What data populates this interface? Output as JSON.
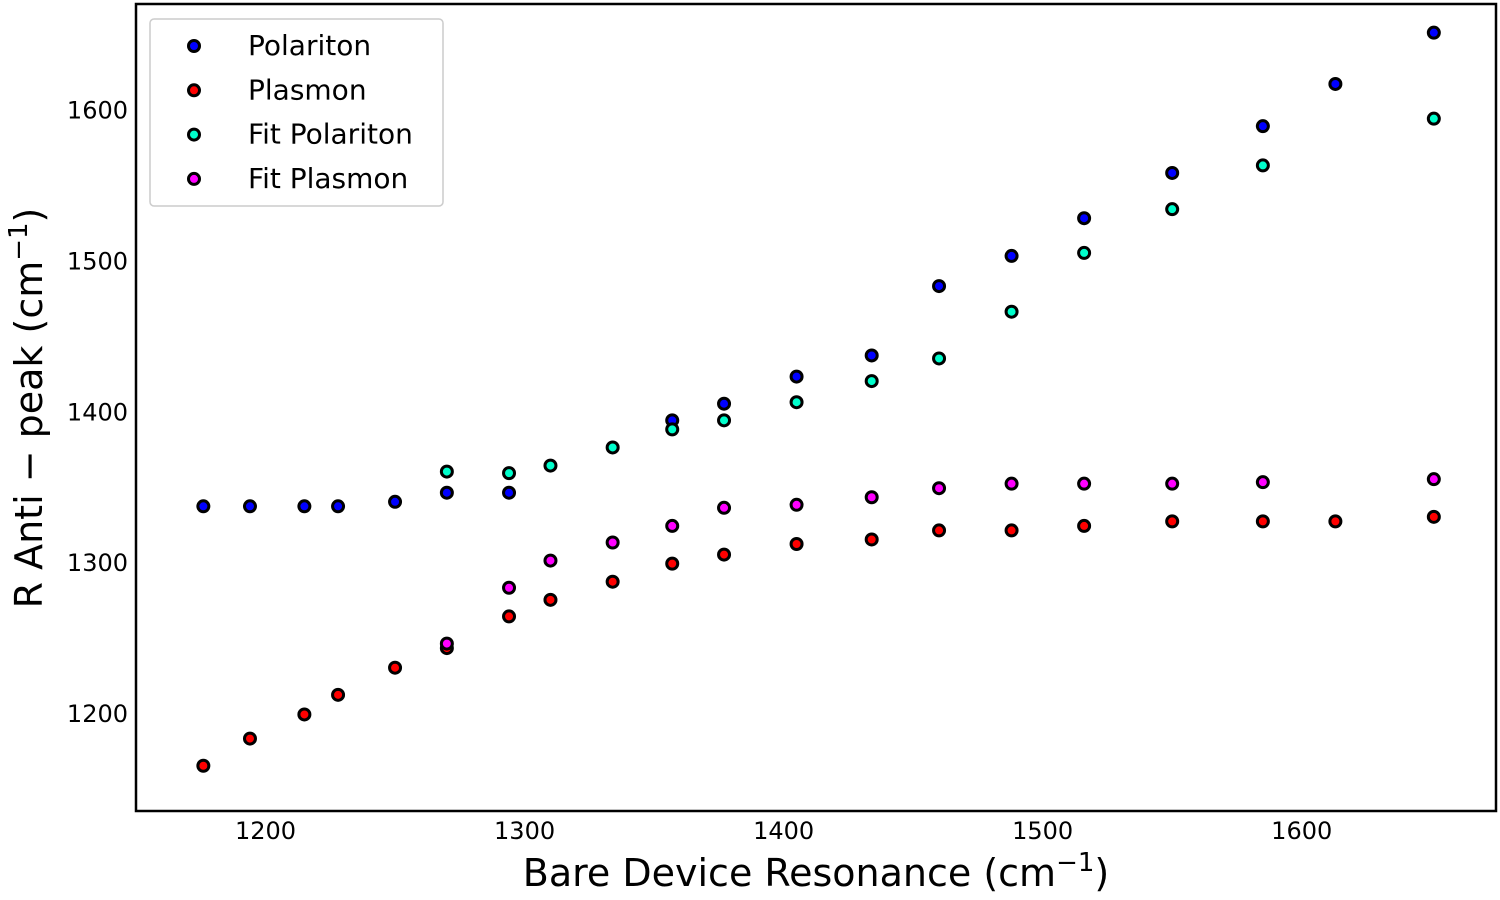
{
  "chart_data": {
    "type": "scatter",
    "xlabel": "Bare Device Resonance (cm",
    "ylabel": "R Anti − peak (cm",
    "label_unit_sup": "−1",
    "label_close": ")",
    "xlim": [
      1150,
      1675
    ],
    "ylim": [
      1135,
      1670
    ],
    "xticks": [
      1200,
      1300,
      1400,
      1500,
      1600
    ],
    "yticks": [
      1200,
      1300,
      1400,
      1500,
      1600
    ],
    "grid": false,
    "legend_position": "top-left",
    "series": [
      {
        "name": "Polariton",
        "color": "#0000ff",
        "points": [
          [
            1176,
            1337
          ],
          [
            1194,
            1337
          ],
          [
            1215,
            1337
          ],
          [
            1228,
            1337
          ],
          [
            1250,
            1340
          ],
          [
            1270,
            1346
          ],
          [
            1294,
            1346
          ],
          [
            1357,
            1394
          ],
          [
            1377,
            1405
          ],
          [
            1405,
            1423
          ],
          [
            1434,
            1437
          ],
          [
            1460,
            1483
          ],
          [
            1488,
            1503
          ],
          [
            1516,
            1528
          ],
          [
            1550,
            1558
          ],
          [
            1585,
            1589
          ],
          [
            1613,
            1617
          ],
          [
            1651,
            1651
          ]
        ]
      },
      {
        "name": "Plasmon",
        "color": "#ff0000",
        "points": [
          [
            1176,
            1165
          ],
          [
            1194,
            1183
          ],
          [
            1215,
            1199
          ],
          [
            1228,
            1212
          ],
          [
            1250,
            1230
          ],
          [
            1270,
            1243
          ],
          [
            1294,
            1264
          ],
          [
            1310,
            1275
          ],
          [
            1334,
            1287
          ],
          [
            1357,
            1299
          ],
          [
            1377,
            1305
          ],
          [
            1405,
            1312
          ],
          [
            1434,
            1315
          ],
          [
            1460,
            1321
          ],
          [
            1488,
            1321
          ],
          [
            1516,
            1324
          ],
          [
            1550,
            1327
          ],
          [
            1585,
            1327
          ],
          [
            1613,
            1327
          ],
          [
            1651,
            1330
          ]
        ]
      },
      {
        "name": "Fit Polariton",
        "color": "#00ffcc",
        "points": [
          [
            1270,
            1360
          ],
          [
            1294,
            1359
          ],
          [
            1310,
            1364
          ],
          [
            1334,
            1376
          ],
          [
            1357,
            1388
          ],
          [
            1377,
            1394
          ],
          [
            1405,
            1406
          ],
          [
            1434,
            1420
          ],
          [
            1460,
            1435
          ],
          [
            1488,
            1466
          ],
          [
            1516,
            1505
          ],
          [
            1550,
            1534
          ],
          [
            1585,
            1563
          ],
          [
            1651,
            1594
          ]
        ]
      },
      {
        "name": "Fit Plasmon",
        "color": "#ff00ff",
        "points": [
          [
            1270,
            1246
          ],
          [
            1294,
            1283
          ],
          [
            1310,
            1301
          ],
          [
            1334,
            1313
          ],
          [
            1357,
            1324
          ],
          [
            1377,
            1336
          ],
          [
            1405,
            1338
          ],
          [
            1434,
            1343
          ],
          [
            1460,
            1349
          ],
          [
            1488,
            1352
          ],
          [
            1516,
            1352
          ],
          [
            1550,
            1352
          ],
          [
            1585,
            1353
          ],
          [
            1651,
            1355
          ]
        ]
      }
    ]
  }
}
